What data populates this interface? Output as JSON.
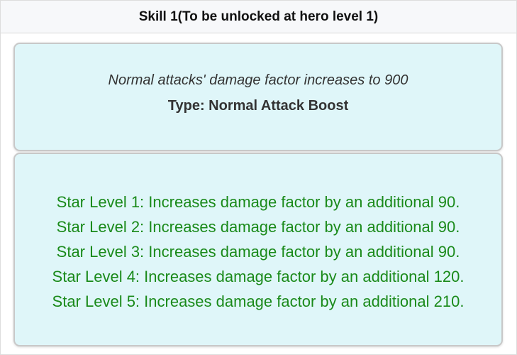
{
  "header": {
    "title": "Skill 1(To be unlocked at hero level 1)"
  },
  "skill": {
    "description": "Normal attacks' damage factor increases to 900",
    "type": "Type: Normal Attack Boost"
  },
  "star_levels": [
    "Star Level 1: Increases damage factor by an additional 90.",
    "Star Level 2: Increases damage factor by an additional 90.",
    "Star Level 3: Increases damage factor by an additional 90.",
    "Star Level 4: Increases damage factor by an additional 120.",
    "Star Level 5: Increases damage factor by an additional 210."
  ],
  "colors": {
    "card_bg": "#dff6f9",
    "star_text": "#1a8a1a"
  }
}
